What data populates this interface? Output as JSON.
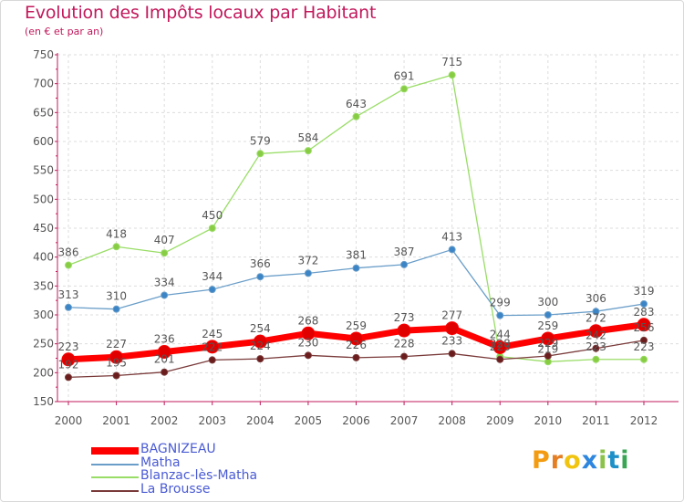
{
  "title": "Evolution des Impôts locaux par Habitant",
  "subtitle": "(en € et par an)",
  "logo_text": "Proxiti",
  "colors": {
    "title": "#c2185b",
    "axis": "#c2185b",
    "grid": "#dddddd",
    "label": "#555555",
    "legend_text": "#4a5bd4"
  },
  "chart_data": {
    "type": "line",
    "x": [
      "2000",
      "2001",
      "2002",
      "2003",
      "2004",
      "2005",
      "2006",
      "2007",
      "2008",
      "2009",
      "2010",
      "2011",
      "2012"
    ],
    "ylim": [
      150,
      750
    ],
    "yticks": [
      150,
      200,
      250,
      300,
      350,
      400,
      450,
      500,
      550,
      600,
      650,
      700,
      750
    ],
    "grid": true,
    "legend_position": "bottom-left",
    "series": [
      {
        "name": "BAGNIZEAU",
        "color": "#ff0000",
        "marker_color": "#e00000",
        "values": [
          223,
          227,
          236,
          245,
          254,
          268,
          259,
          273,
          277,
          244,
          259,
          272,
          283
        ]
      },
      {
        "name": "Matha",
        "color": "#6a9ec9",
        "marker_color": "#3b84c6",
        "values": [
          313,
          310,
          334,
          344,
          366,
          372,
          381,
          387,
          413,
          299,
          300,
          306,
          319
        ]
      },
      {
        "name": "Blanzac-lès-Matha",
        "color": "#99dd66",
        "marker_color": "#88cc44",
        "values": [
          386,
          418,
          407,
          450,
          579,
          584,
          643,
          691,
          715,
          228,
          219,
          223,
          223
        ]
      },
      {
        "name": "La Brousse",
        "color": "#7a3a3a",
        "marker_color": "#6b1c1c",
        "values": [
          192,
          195,
          201,
          222,
          224,
          230,
          226,
          228,
          233,
          223,
          229,
          242,
          256
        ]
      }
    ]
  }
}
